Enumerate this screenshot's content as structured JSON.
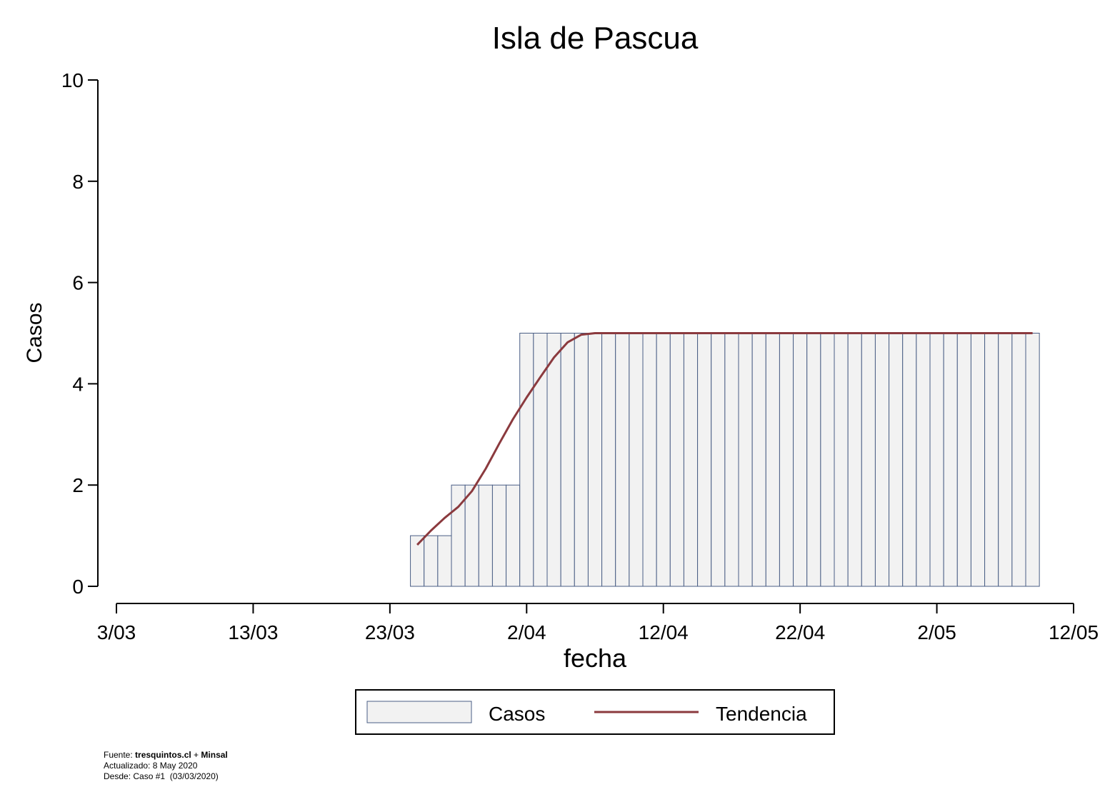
{
  "chart_data": {
    "type": "bar",
    "title": "Isla de Pascua",
    "xlabel": "fecha",
    "ylabel": "Casos",
    "ylim": [
      0,
      10
    ],
    "yticks": [
      0,
      2,
      4,
      6,
      8,
      10
    ],
    "xticks": [
      "3/03",
      "13/03",
      "23/03",
      "2/04",
      "12/04",
      "22/04",
      "2/05",
      "12/05"
    ],
    "x_start": "24/03",
    "x_end": "8/05",
    "categories": [
      "24/03",
      "25/03",
      "26/03",
      "27/03",
      "28/03",
      "29/03",
      "30/03",
      "31/03",
      "1/04",
      "2/04",
      "3/04",
      "4/04",
      "5/04",
      "6/04",
      "7/04",
      "8/04",
      "9/04",
      "10/04",
      "11/04",
      "12/04",
      "13/04",
      "14/04",
      "15/04",
      "16/04",
      "17/04",
      "18/04",
      "19/04",
      "20/04",
      "21/04",
      "22/04",
      "23/04",
      "24/04",
      "25/04",
      "26/04",
      "27/04",
      "28/04",
      "29/04",
      "30/04",
      "1/05",
      "2/05",
      "3/05",
      "4/05",
      "5/05",
      "6/05",
      "7/05",
      "8/05"
    ],
    "series": [
      {
        "name": "Casos",
        "kind": "bar",
        "color": "#f2f2f2",
        "edge": "#4a5e85",
        "values": [
          1,
          1,
          1,
          2,
          2,
          2,
          2,
          2,
          5,
          5,
          5,
          5,
          5,
          5,
          5,
          5,
          5,
          5,
          5,
          5,
          5,
          5,
          5,
          5,
          5,
          5,
          5,
          5,
          5,
          5,
          5,
          5,
          5,
          5,
          5,
          5,
          5,
          5,
          5,
          5,
          5,
          5,
          5,
          5,
          5,
          5
        ]
      },
      {
        "name": "Tendencia",
        "kind": "line",
        "color": "#8b3a3e",
        "values": [
          0.82,
          1.1,
          1.35,
          1.57,
          1.88,
          2.32,
          2.82,
          3.3,
          3.73,
          4.13,
          4.52,
          4.82,
          4.97,
          5,
          5,
          5,
          5,
          5,
          5,
          5,
          5,
          5,
          5,
          5,
          5,
          5,
          5,
          5,
          5,
          5,
          5,
          5,
          5,
          5,
          5,
          5,
          5,
          5,
          5,
          5,
          5,
          5,
          5,
          5,
          5,
          5
        ]
      }
    ],
    "legend": {
      "position": "bottom-center",
      "items": [
        "Casos",
        "Tendencia"
      ]
    },
    "grid": false
  },
  "footer": {
    "line1_prefix": "Fuente: ",
    "source1": "tresquintos.cl",
    "plus": " + ",
    "source2": "Minsal",
    "line2": "Actualizado: 8 May 2020",
    "line3": "Desde: Caso #1  (03/03/2020)"
  }
}
